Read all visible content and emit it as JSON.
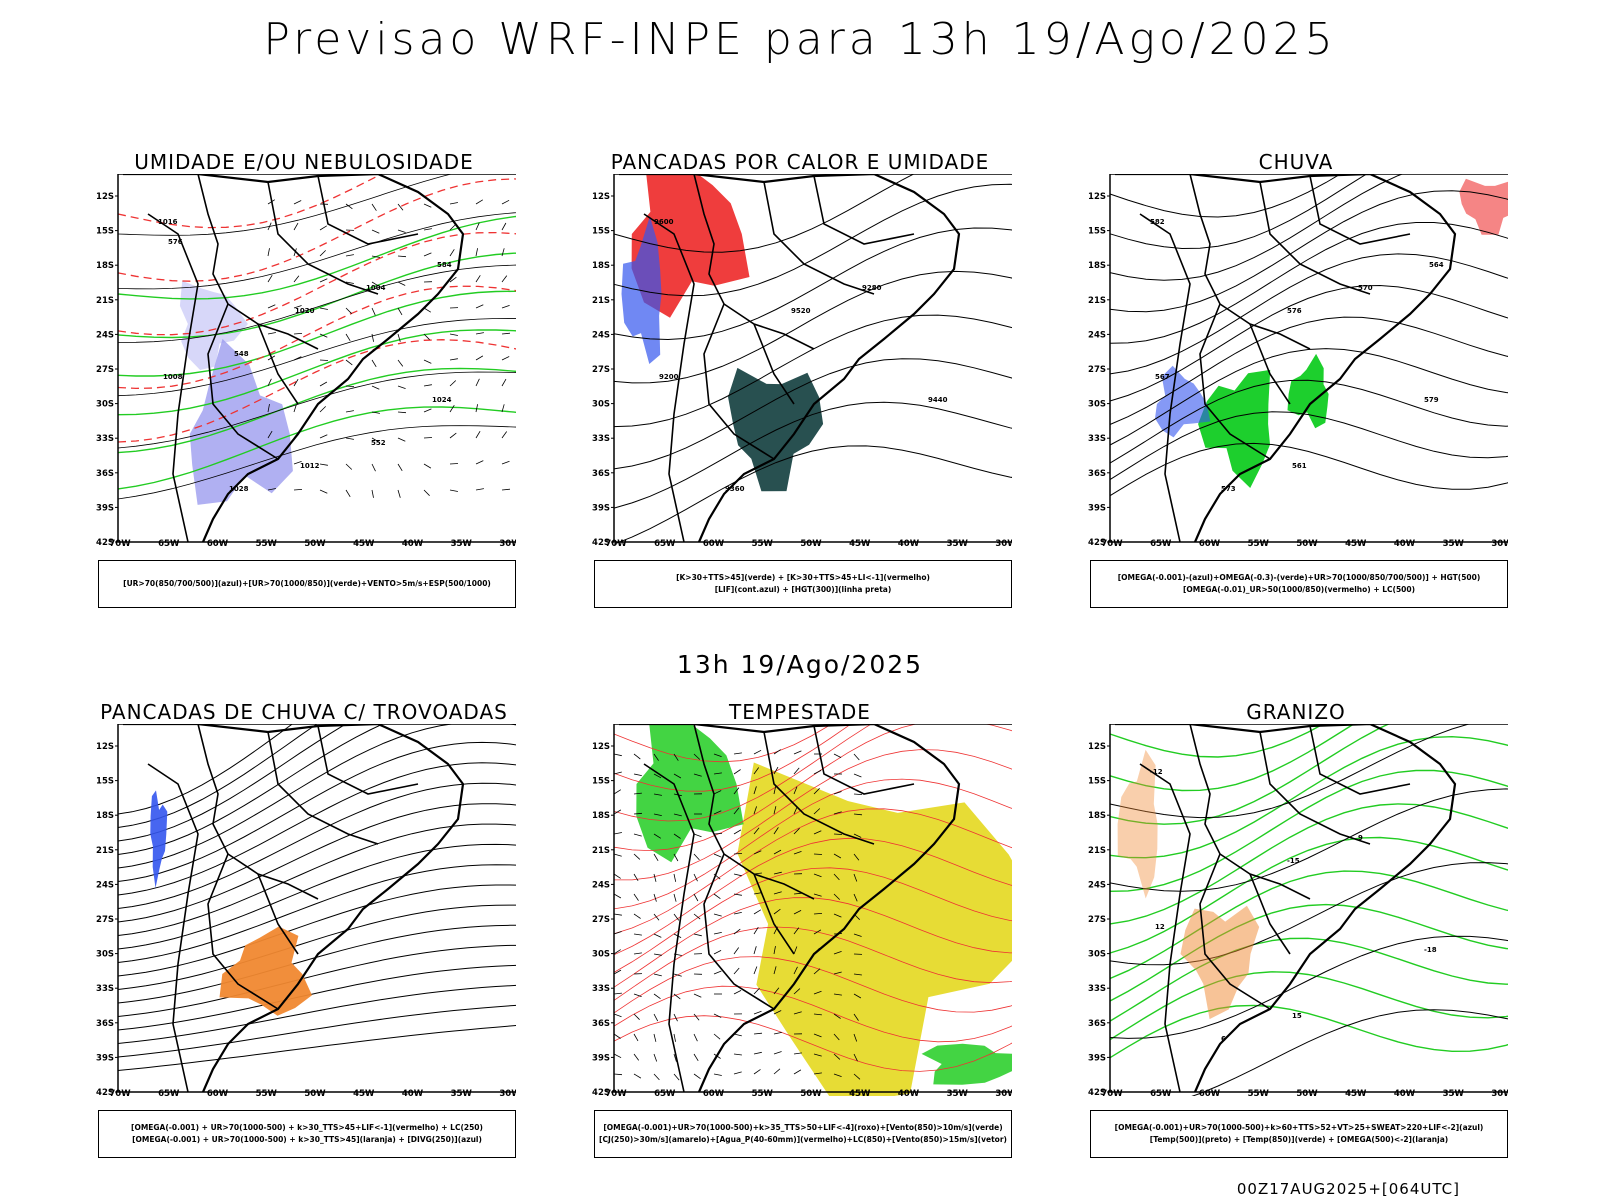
{
  "title": "Previsao WRF-INPE  para 13h 19/Ago/2025",
  "subtitle": "13h 19/Ago/2025",
  "footer": "00Z17AUG2025+[064UTC]",
  "axes": {
    "lat_labels": [
      "12S",
      "15S",
      "18S",
      "21S",
      "24S",
      "27S",
      "30S",
      "33S",
      "36S",
      "39S",
      "42S"
    ],
    "lon_labels": [
      "70W",
      "65W",
      "60W",
      "55W",
      "50W",
      "45W",
      "40W",
      "35W",
      "30W"
    ]
  },
  "panels": [
    {
      "title": "UMIDADE E/OU NEBULOSIDADE",
      "legend": [
        "[UR>70(850/700/500)](azul)+[UR>70(1000/850)](verde)+VENTO>5m/s+ESP(500/1000)"
      ],
      "contour_labels": [
        "1016",
        "1020",
        "1024",
        "1028",
        "1004",
        "1008",
        "1012",
        "584",
        "548",
        "552",
        "576"
      ]
    },
    {
      "title": "PANCADAS POR CALOR E UMIDADE",
      "legend": [
        "[K>30+TTS>45](verde) + [K>30+TTS>45+LI<-1](vermelho)",
        "[LIF](cont.azul) + [HGT(300)](linha preta)"
      ],
      "contour_labels": [
        "9600",
        "9520",
        "9440",
        "9360",
        "9280",
        "9200"
      ]
    },
    {
      "title": "CHUVA",
      "legend": [
        "[OMEGA(-0.001)-(azul)+OMEGA(-0.3)-(verde)+UR>70(1000/850/700/500)] + HGT(500)",
        "[OMEGA(-0.01)_UR>50(1000/850)(vermelho) + LC(500)"
      ],
      "contour_labels": [
        "582",
        "576",
        "579",
        "573",
        "570",
        "567",
        "561",
        "564"
      ]
    },
    {
      "title": "PANCADAS DE CHUVA C/ TROVOADAS",
      "legend": [
        "[OMEGA(-0.001) + UR>70(1000-500) + k>30_TTS>45+LIF<-1](vermelho) + LC(250)",
        "[OMEGA(-0.001) + UR>70(1000-500) + k>30_TTS>45](laranja) + [DIVG(250)](azul)"
      ],
      "contour_labels": []
    },
    {
      "title": "TEMPESTADE",
      "legend": [
        "[OMEGA(-0.001)+UR>70(1000-500)+k>35_TTS>50+LIF<-4](roxo)+[Vento(850)>10m/s](verde)",
        "[CJ(250)>30m/s](amarelo)+[Agua_P(40-60mm)](vermelho)+LC(850)+[Vento(850)>15m/s](vetor)"
      ],
      "contour_labels": []
    },
    {
      "title": "GRANIZO",
      "legend": [
        "[OMEGA(-0.001)+UR>70(1000-500)+k>60+TTS>52+VT>25+SWEAT>220+LIF<-2](azul)",
        "[Temp(500)](preto) + [Temp(850)](verde) + [OMEGA(500)<-2](laranja)"
      ],
      "contour_labels": [
        "-12",
        "-15",
        "-18",
        "6",
        "9",
        "12",
        "15"
      ]
    }
  ]
}
